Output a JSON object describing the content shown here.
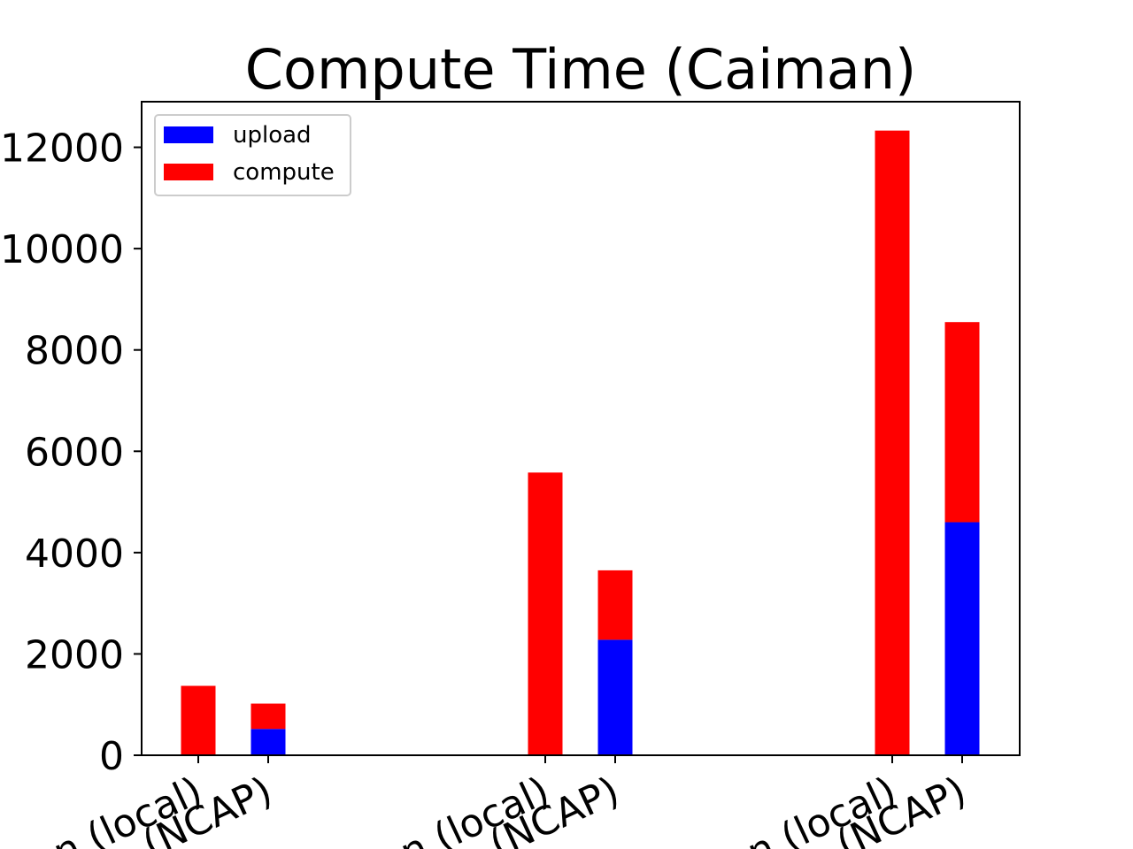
{
  "chart_data": {
    "type": "bar",
    "stacked": true,
    "title": "Compute Time (Caiman)",
    "xlabel": "",
    "ylabel": "",
    "ylim": [
      0,
      12900
    ],
    "yticks": [
      0,
      2000,
      4000,
      6000,
      8000,
      10000,
      12000
    ],
    "ytick_labels": [
      "0",
      "2000",
      "4000",
      "6000",
      "8000",
      "10000",
      "12000"
    ],
    "xtick_labels": [
      "n (local)",
      "(NCAP)",
      "n (local)",
      "(NCAP)",
      "n (local)",
      "(NCAP)"
    ],
    "legend": {
      "placement": "top-left",
      "entries": [
        "upload",
        "compute"
      ]
    },
    "grid": false,
    "categories": [
      "n (local)",
      "(NCAP)",
      "n (local)",
      "(NCAP)",
      "n (local)",
      "(NCAP)"
    ],
    "series": [
      {
        "name": "upload",
        "color": "#0000ff",
        "values": [
          0,
          520,
          0,
          2280,
          0,
          4600
        ]
      },
      {
        "name": "compute",
        "color": "#ff0000",
        "values": [
          1370,
          500,
          5580,
          1370,
          12330,
          3950
        ]
      }
    ]
  }
}
